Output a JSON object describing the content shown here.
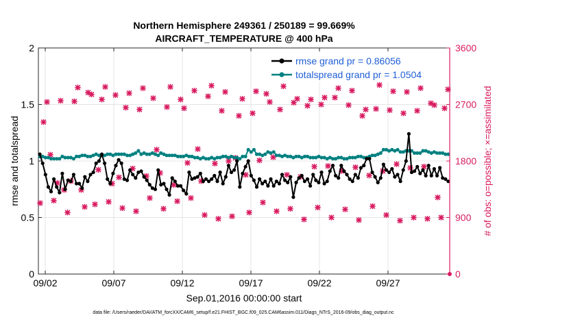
{
  "chart_data": {
    "type": "line",
    "title_line1": "Northern Hemisphere 249361 / 250189 = 99.669%",
    "title_line2": "AIRCRAFT_TEMPERATURE @ 400 hPa",
    "xlabel": "Sep.01,2016 00:00:00 start",
    "ylabel_left": "rmse and totalspread",
    "ylabel_right": "# of obs: o=possible; ×=assimilated",
    "footer": "data file: /Users/raeder/DAI/ATM_forcXX/CAM6_setup/f.e21.FHIST_BGC.f09_025.CAM6assim.011/Diags_NTrS_2016-09/obs_diag_output.nc",
    "xlim": [
      1.5,
      31.5
    ],
    "ylim_left": [
      0,
      2
    ],
    "ylim_right": [
      0,
      3600
    ],
    "x_ticks": [
      2,
      7,
      12,
      17,
      22,
      27
    ],
    "x_tick_labels": [
      "09/02",
      "09/07",
      "09/12",
      "09/17",
      "09/22",
      "09/27"
    ],
    "y_ticks_left": [
      0,
      0.5,
      1,
      1.5,
      2
    ],
    "y_tick_labels_left": [
      "0",
      "0.5",
      "1",
      "1.5",
      "2"
    ],
    "y_ticks_right": [
      0,
      900,
      1800,
      2700,
      3600
    ],
    "y_tick_labels_right": [
      "0",
      "900",
      "1800",
      "2700",
      "3600"
    ],
    "grid": true,
    "legend_position": "top-right",
    "colors": {
      "rmse": "#000000",
      "spread": "#008080",
      "obs": "#d81b60"
    },
    "series": [
      {
        "name": "rmse grand pr = 0.86056",
        "values": [
          1.06,
          0.98,
          0.88,
          0.77,
          0.73,
          0.84,
          0.77,
          0.72,
          0.89,
          0.75,
          0.83,
          0.82,
          0.88,
          0.8,
          0.8,
          0.76,
          0.86,
          0.82,
          0.88,
          0.9,
          0.98,
          1.0,
          1.06,
          0.98,
          0.84,
          0.8,
          0.89,
          0.96,
          1.01,
          0.98,
          0.84,
          0.83,
          0.92,
          0.88,
          0.85,
          0.9,
          0.91,
          0.86,
          0.83,
          0.79,
          0.76,
          0.75,
          0.92,
          0.79,
          0.8,
          0.75,
          0.7,
          0.85,
          0.82,
          0.78,
          0.78,
          0.74,
          0.71,
          0.9,
          0.84,
          0.85,
          0.86,
          0.89,
          0.82,
          0.84,
          0.82,
          0.84,
          0.87,
          0.82,
          0.9,
          0.8,
          0.86,
          0.96,
          0.9,
          0.92,
          1.0,
          0.77,
          0.89,
          0.95,
          1.0,
          0.87,
          0.83,
          0.77,
          0.84,
          0.8,
          0.82,
          0.78,
          0.84,
          0.78,
          0.82,
          0.8,
          0.88,
          0.83,
          0.81,
          0.86,
          0.68,
          0.81,
          0.85,
          0.87,
          0.82,
          0.84,
          0.78,
          0.88,
          0.83,
          0.81,
          0.9,
          0.8,
          0.82,
          0.91,
          0.96,
          0.87,
          0.85,
          0.96,
          0.91,
          0.88,
          0.84,
          0.82,
          0.88,
          0.85,
          0.94,
          0.96,
          1.02,
          1.02,
          0.9,
          0.86,
          0.81,
          0.85,
          0.97,
          0.92,
          0.9,
          0.93,
          0.86,
          0.88,
          0.82,
          0.92,
          1.0,
          1.24,
          0.9,
          0.91,
          0.95,
          0.89,
          0.92,
          0.87,
          0.96,
          0.87,
          0.93,
          0.87,
          0.94,
          0.85,
          0.84,
          0.82
        ]
      },
      {
        "name": "totalspread grand pr = 1.0504",
        "values": [
          1.04,
          1.04,
          1.03,
          1.03,
          1.02,
          1.02,
          1.02,
          1.02,
          1.04,
          1.03,
          1.03,
          1.03,
          1.02,
          1.04,
          1.04,
          1.05,
          1.05,
          1.04,
          1.04,
          1.05,
          1.06,
          1.05,
          1.05,
          1.05,
          1.06,
          1.06,
          1.05,
          1.06,
          1.06,
          1.06,
          1.06,
          1.05,
          1.05,
          1.06,
          1.07,
          1.09,
          1.06,
          1.07,
          1.06,
          1.06,
          1.07,
          1.06,
          1.05,
          1.07,
          1.06,
          1.05,
          1.05,
          1.05,
          1.05,
          1.04,
          1.04,
          1.04,
          1.05,
          1.04,
          1.04,
          1.03,
          1.03,
          1.02,
          1.03,
          1.02,
          1.02,
          1.03,
          1.02,
          1.03,
          1.03,
          1.04,
          1.04,
          1.03,
          1.04,
          1.03,
          1.03,
          1.02,
          1.04,
          1.04,
          1.1,
          1.08,
          1.1,
          1.06,
          1.06,
          1.05,
          1.06,
          1.08,
          1.07,
          1.08,
          1.05,
          1.05,
          1.04,
          1.05,
          1.04,
          1.04,
          1.03,
          1.04,
          1.04,
          1.03,
          1.04,
          1.04,
          1.03,
          1.03,
          1.03,
          1.04,
          1.03,
          1.03,
          1.02,
          1.03,
          1.02,
          1.02,
          1.03,
          1.03,
          1.02,
          1.02,
          1.03,
          1.03,
          1.03,
          1.04,
          1.04,
          1.03,
          1.03,
          1.04,
          1.05,
          1.05,
          1.06,
          1.07,
          1.1,
          1.1,
          1.09,
          1.1,
          1.09,
          1.1,
          1.08,
          1.08,
          1.09,
          1.09,
          1.09,
          1.07,
          1.07,
          1.07,
          1.09,
          1.09,
          1.08,
          1.07,
          1.08,
          1.07,
          1.07,
          1.07,
          1.06,
          1.06
        ]
      },
      {
        "name": "obs possible / assimilated",
        "x": [
          1.625,
          1.875,
          2.125,
          2.375,
          2.625,
          2.875,
          3.125,
          3.375,
          3.625,
          3.875,
          4.125,
          4.375,
          4.625,
          4.875,
          5.125,
          5.375,
          5.625,
          5.875,
          6.125,
          6.375,
          6.625,
          6.875,
          7.125,
          7.375,
          7.625,
          7.875,
          8.125,
          8.375,
          8.625,
          8.875,
          9.125,
          9.375,
          9.625,
          9.875,
          10.125,
          10.375,
          10.625,
          10.875,
          11.125,
          11.375,
          11.625,
          11.875,
          12.125,
          12.375,
          12.625,
          12.875,
          13.125,
          13.375,
          13.625,
          13.875,
          14.125,
          14.375,
          14.625,
          14.875,
          15.125,
          15.375,
          15.625,
          15.875,
          16.125,
          16.375,
          16.625,
          16.875,
          17.125,
          17.375,
          17.625,
          17.875,
          18.125,
          18.375,
          18.625,
          18.875,
          19.125,
          19.375,
          19.625,
          19.875,
          20.125,
          20.375,
          20.625,
          20.875,
          21.125,
          21.375,
          21.625,
          21.875,
          22.125,
          22.375,
          22.625,
          22.875,
          23.125,
          23.375,
          23.625,
          23.875,
          24.125,
          24.375,
          24.625,
          24.875,
          25.125,
          25.375,
          25.625,
          25.875,
          26.125,
          26.375,
          26.625,
          26.875,
          27.125,
          27.375,
          27.625,
          27.875,
          28.125,
          28.375,
          28.625,
          28.875,
          29.125,
          29.375,
          29.625,
          29.875,
          30.125,
          30.375,
          30.625,
          30.875,
          31.125,
          31.375
        ],
        "values": [
          1130,
          2420,
          2740,
          1900,
          1170,
          1450,
          2760,
          1340,
          980,
          1480,
          2750,
          2970,
          1340,
          1070,
          2890,
          2860,
          1110,
          1660,
          2780,
          2980,
          1150,
          1440,
          2850,
          1540,
          1050,
          2650,
          2880,
          1680,
          1000,
          2620,
          2960,
          1560,
          1210,
          2800,
          1980,
          1610,
          1040,
          2660,
          2980,
          1420,
          1160,
          2780,
          2640,
          1770,
          1210,
          2920,
          1990,
          1480,
          940,
          2830,
          3000,
          1760,
          880,
          2600,
          2900,
          1800,
          920,
          1850,
          2520,
          2790,
          1580,
          980,
          2560,
          2910,
          1810,
          1140,
          2870,
          2740,
          1860,
          1000,
          2620,
          2990,
          1580,
          1040,
          2730,
          2790,
          1550,
          870,
          2680,
          2780,
          1710,
          1060,
          2700,
          2810,
          1720,
          900,
          2810,
          2960,
          1640,
          1030,
          2690,
          2920,
          1700,
          860,
          2520,
          2620,
          1570,
          1080,
          2630,
          3010,
          1640,
          940,
          2610,
          2910,
          1750,
          850,
          2560,
          2900,
          1690,
          900,
          2600,
          2960,
          1710,
          880,
          2720,
          2690,
          1220,
          900,
          2640,
          2940
        ]
      }
    ]
  }
}
